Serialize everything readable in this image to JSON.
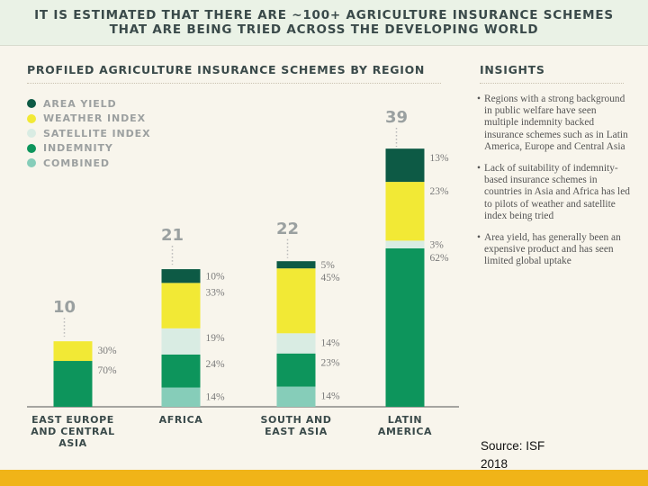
{
  "header": {
    "line1": "IT IS ESTIMATED THAT THERE ARE ~100+ AGRICULTURE INSURANCE SCHEMES",
    "line2": "THAT ARE BEING TRIED ACROSS THE DEVELOPING WORLD"
  },
  "chart_section": {
    "title": "PROFILED AGRICULTURE INSURANCE SCHEMES BY REGION"
  },
  "insights_section": {
    "title": "INSIGHTS",
    "items": [
      "Regions with a strong background in public welfare have seen multiple indemnity backed insurance schemes such as in Latin America, Europe and Central Asia",
      "Lack of suitability of indemnity- based insurance schemes in countries in Asia and Africa has led to pilots of weather and satellite index being tried",
      "Area yield, has generally been an expensive product and has seen limited global uptake"
    ]
  },
  "colors": {
    "area_yield": "#0d5a45",
    "weather_index": "#f2e935",
    "satellite_index": "#d9ece3",
    "indemnity": "#0d955c",
    "combined": "#86cdb9",
    "footer": "#f0b418",
    "header_bg": "#eaf2e6"
  },
  "chart_data": {
    "type": "bar",
    "stacked": true,
    "title": "PROFILED AGRICULTURE INSURANCE SCHEMES BY REGION",
    "categories": [
      "EAST EUROPE AND CENTRAL ASIA",
      "AFRICA",
      "SOUTH AND EAST ASIA",
      "LATIN AMERICA"
    ],
    "totals": [
      10,
      21,
      22,
      39
    ],
    "series": [
      {
        "name": "AREA YIELD",
        "key": "area_yield",
        "percent": [
          0,
          10,
          5,
          13
        ],
        "labels": [
          "",
          "10%",
          "5%",
          "13%"
        ]
      },
      {
        "name": "WEATHER INDEX",
        "key": "weather_index",
        "percent": [
          30,
          33,
          45,
          23
        ],
        "labels": [
          "30%",
          "33%",
          "45%",
          "23%"
        ]
      },
      {
        "name": "SATELLITE INDEX",
        "key": "satellite_index",
        "percent": [
          0,
          19,
          14,
          3
        ],
        "labels": [
          "",
          "19%",
          "14%",
          "3%"
        ]
      },
      {
        "name": "INDEMNITY",
        "key": "indemnity",
        "percent": [
          70,
          24,
          23,
          62
        ],
        "labels": [
          "70%",
          "24%",
          "23%",
          "62%"
        ]
      },
      {
        "name": "COMBINED",
        "key": "combined",
        "percent": [
          0,
          14,
          14,
          0
        ],
        "labels": [
          "",
          "14%",
          "14%",
          ""
        ]
      }
    ],
    "ylim": [
      0,
      39
    ],
    "legend": "top-left",
    "grid": false
  },
  "source": {
    "line1": "Source: ISF",
    "line2": "2018"
  }
}
